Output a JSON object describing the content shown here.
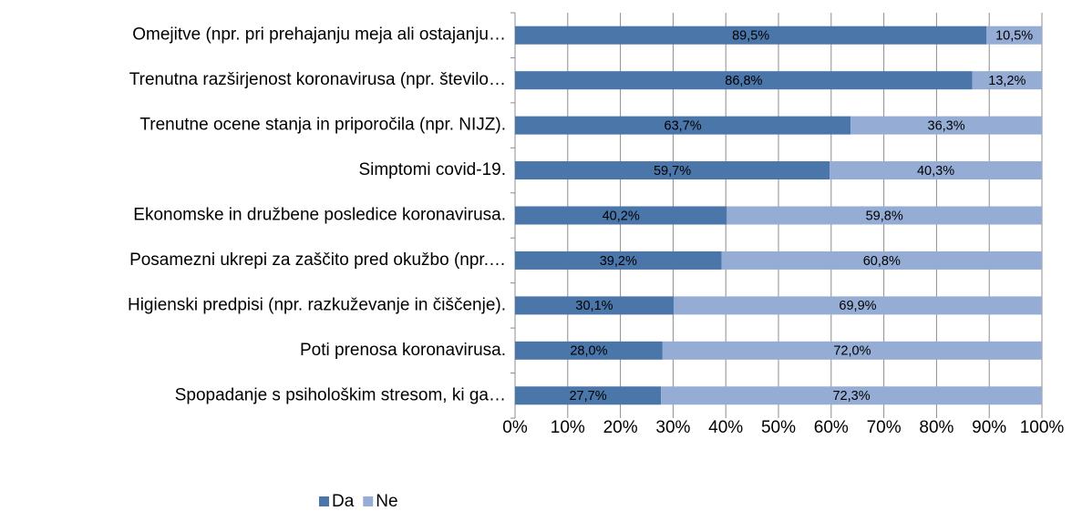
{
  "chart_data": {
    "type": "bar",
    "orientation": "horizontal",
    "stacked": true,
    "categories": [
      "Omejitve (npr. pri prehajanju meja ali ostajanju…",
      "Trenutna razširjenost koronavirusa (npr. število…",
      "Trenutne ocene stanja in priporočila (npr. NIJZ).",
      "Simptomi covid-19.",
      "Ekonomske in družbene posledice koronavirusa.",
      "Posamezni ukrepi za zaščito pred okužbo (npr.…",
      "Higienski predpisi (npr. razkuževanje in čiščenje).",
      "Poti prenosa koronavirusa.",
      "Spopadanje s psihološkim stresom, ki ga…"
    ],
    "series": [
      {
        "name": "Da",
        "color": "#4a76aa",
        "values": [
          89.5,
          86.8,
          63.7,
          59.7,
          40.2,
          39.2,
          30.1,
          28.0,
          27.7
        ],
        "value_labels": [
          "89,5%",
          "86,8%",
          "63,7%",
          "59,7%",
          "40,2%",
          "39,2%",
          "30,1%",
          "28,0%",
          "27,7%"
        ]
      },
      {
        "name": "Ne",
        "color": "#95add5",
        "values": [
          10.5,
          13.2,
          36.3,
          40.3,
          59.8,
          60.8,
          69.9,
          72.0,
          72.3
        ],
        "value_labels": [
          "10,5%",
          "13,2%",
          "36,3%",
          "40,3%",
          "59,8%",
          "60,8%",
          "69,9%",
          "72,0%",
          "72,3%"
        ]
      }
    ],
    "xlim": [
      0,
      100
    ],
    "xticks": [
      {
        "value": 0,
        "label": "0%"
      },
      {
        "value": 10,
        "label": "10%"
      },
      {
        "value": 20,
        "label": "20%"
      },
      {
        "value": 30,
        "label": "30%"
      },
      {
        "value": 40,
        "label": "40%"
      },
      {
        "value": 50,
        "label": "50%"
      },
      {
        "value": 60,
        "label": "60%"
      },
      {
        "value": 70,
        "label": "70%"
      },
      {
        "value": 80,
        "label": "80%"
      },
      {
        "value": 90,
        "label": "90%"
      },
      {
        "value": 100,
        "label": "100%"
      }
    ],
    "grid": true,
    "legend": "bottom"
  }
}
